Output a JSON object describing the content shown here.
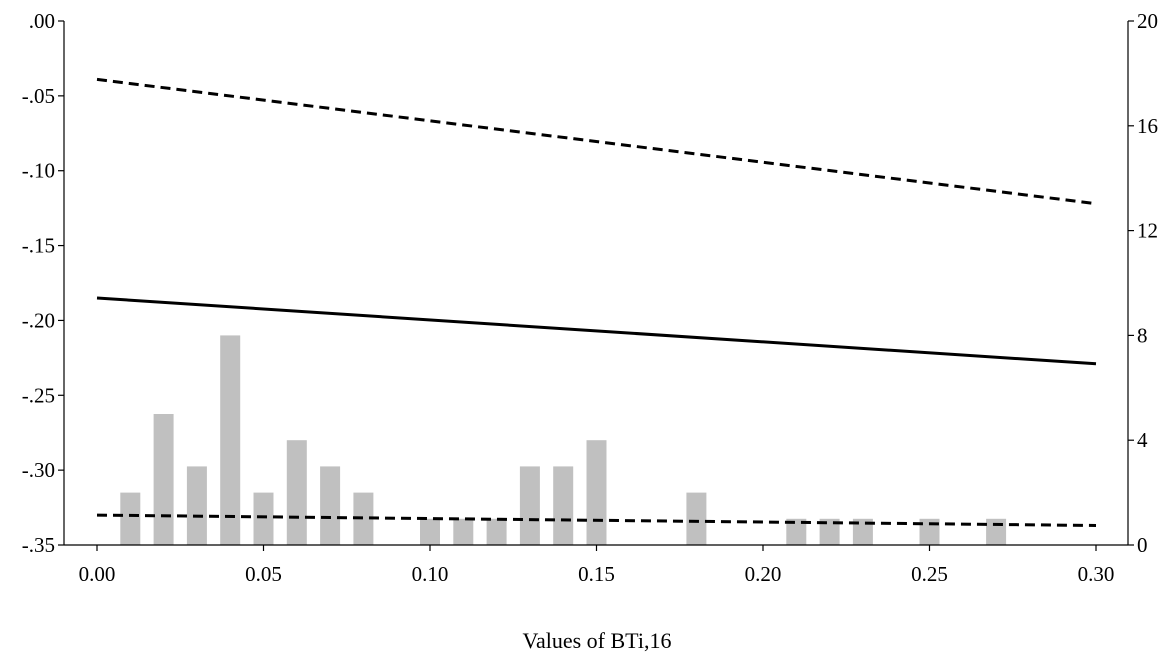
{
  "chart_data": {
    "type": "bar+line",
    "xlabel": "Values of BTi,16",
    "x_axis": {
      "range": [
        0.0,
        0.3
      ],
      "ticks": [
        0.0,
        0.05,
        0.1,
        0.15,
        0.2,
        0.25,
        0.3
      ],
      "tick_labels": [
        "0.00",
        "0.05",
        "0.10",
        "0.15",
        "0.20",
        "0.25",
        "0.30"
      ]
    },
    "y_left": {
      "range": [
        -0.35,
        0.0
      ],
      "ticks": [
        0.0,
        -0.05,
        -0.1,
        -0.15,
        -0.2,
        -0.25,
        -0.3,
        -0.35
      ],
      "tick_labels": [
        ".00",
        "-.05",
        "-.10",
        "-.15",
        "-.20",
        "-.25",
        "-.30",
        "-.35"
      ]
    },
    "y_right": {
      "range": [
        0,
        20
      ],
      "ticks": [
        0,
        4,
        8,
        12,
        16,
        20
      ],
      "tick_labels": [
        "0",
        "4",
        "8",
        "12",
        "16",
        "20"
      ]
    },
    "histogram": {
      "axis": "right",
      "color": "#c0c0c0",
      "bins": [
        {
          "x": 0.01,
          "count": 2
        },
        {
          "x": 0.02,
          "count": 5
        },
        {
          "x": 0.03,
          "count": 3
        },
        {
          "x": 0.04,
          "count": 8
        },
        {
          "x": 0.05,
          "count": 2
        },
        {
          "x": 0.06,
          "count": 4
        },
        {
          "x": 0.07,
          "count": 3
        },
        {
          "x": 0.08,
          "count": 2
        },
        {
          "x": 0.1,
          "count": 1
        },
        {
          "x": 0.11,
          "count": 1
        },
        {
          "x": 0.12,
          "count": 1
        },
        {
          "x": 0.13,
          "count": 3
        },
        {
          "x": 0.14,
          "count": 3
        },
        {
          "x": 0.15,
          "count": 4
        },
        {
          "x": 0.18,
          "count": 2
        },
        {
          "x": 0.21,
          "count": 1
        },
        {
          "x": 0.22,
          "count": 1
        },
        {
          "x": 0.23,
          "count": 1
        },
        {
          "x": 0.25,
          "count": 1
        },
        {
          "x": 0.27,
          "count": 1
        }
      ]
    },
    "series": [
      {
        "style": "solid",
        "axis": "left",
        "color": "#000000",
        "x": [
          0.0,
          0.3
        ],
        "y": [
          -0.185,
          -0.229
        ]
      },
      {
        "style": "dashed",
        "axis": "left",
        "color": "#000000",
        "x": [
          0.0,
          0.3
        ],
        "y": [
          -0.039,
          -0.122
        ]
      },
      {
        "style": "dashed",
        "axis": "left",
        "color": "#000000",
        "x": [
          0.0,
          0.3
        ],
        "y": [
          -0.33,
          -0.337
        ]
      }
    ],
    "grid": false,
    "legend": "none"
  }
}
